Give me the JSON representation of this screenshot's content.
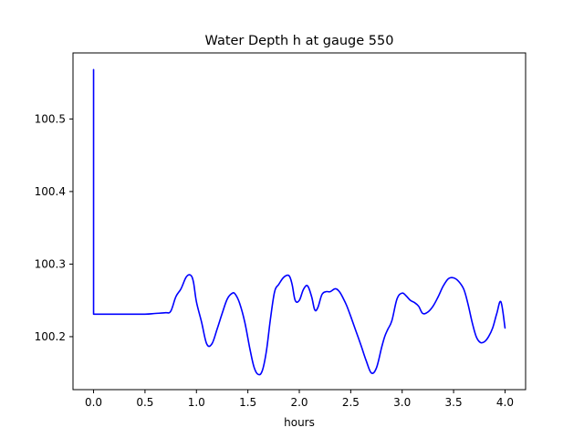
{
  "chart_data": {
    "type": "line",
    "title": "Water Depth h at gauge 550",
    "xlabel": "hours",
    "ylabel": "",
    "xlim": [
      -0.2,
      4.2
    ],
    "ylim": [
      100.127,
      100.591
    ],
    "xticks": [
      0.0,
      0.5,
      1.0,
      1.5,
      2.0,
      2.5,
      3.0,
      3.5,
      4.0
    ],
    "xtick_labels": [
      "0.0",
      "0.5",
      "1.0",
      "1.5",
      "2.0",
      "2.5",
      "3.0",
      "3.5",
      "4.0"
    ],
    "yticks": [
      100.2,
      100.3,
      100.4,
      100.5
    ],
    "ytick_labels": [
      "100.2",
      "100.3",
      "100.4",
      "100.5"
    ],
    "grid": false,
    "line_color": "#0000ff",
    "series": [
      {
        "x": [
          0.0,
          0.0,
          0.1,
          0.3,
          0.5,
          0.6,
          0.7,
          0.75,
          0.8,
          0.85,
          0.9,
          0.94,
          0.97,
          1.0,
          1.05,
          1.1,
          1.15,
          1.2,
          1.25,
          1.3,
          1.35,
          1.38,
          1.42,
          1.47,
          1.52,
          1.56,
          1.6,
          1.64,
          1.68,
          1.72,
          1.76,
          1.8,
          1.85,
          1.9,
          1.93,
          1.96,
          2.0,
          2.04,
          2.08,
          2.12,
          2.15,
          2.18,
          2.22,
          2.26,
          2.3,
          2.35,
          2.39,
          2.43,
          2.46,
          2.5,
          2.55,
          2.6,
          2.65,
          2.7,
          2.75,
          2.8,
          2.83,
          2.86,
          2.9,
          2.95,
          3.0,
          3.04,
          3.08,
          3.12,
          3.16,
          3.2,
          3.25,
          3.3,
          3.35,
          3.4,
          3.45,
          3.5,
          3.55,
          3.6,
          3.64,
          3.68,
          3.72,
          3.76,
          3.8,
          3.84,
          3.88,
          3.92,
          3.96,
          4.0
        ],
        "y": [
          100.568,
          100.231,
          100.231,
          100.231,
          100.231,
          100.232,
          100.233,
          100.235,
          100.255,
          100.266,
          100.282,
          100.285,
          100.276,
          100.248,
          100.22,
          100.19,
          100.19,
          100.21,
          100.232,
          100.252,
          100.26,
          100.258,
          100.246,
          100.22,
          100.183,
          100.158,
          100.148,
          100.153,
          100.18,
          100.225,
          100.262,
          100.272,
          100.282,
          100.284,
          100.272,
          100.25,
          100.25,
          100.265,
          100.27,
          100.255,
          100.237,
          100.24,
          100.258,
          100.262,
          100.262,
          100.266,
          100.262,
          100.252,
          100.243,
          100.228,
          100.208,
          100.188,
          100.167,
          100.15,
          100.157,
          100.185,
          100.2,
          100.21,
          100.222,
          100.252,
          100.26,
          100.256,
          100.25,
          100.247,
          100.242,
          100.232,
          100.234,
          100.242,
          100.255,
          100.27,
          100.28,
          100.281,
          100.276,
          100.265,
          100.245,
          100.22,
          100.2,
          100.192,
          100.193,
          100.2,
          100.212,
          100.232,
          100.248,
          100.212
        ]
      }
    ]
  }
}
